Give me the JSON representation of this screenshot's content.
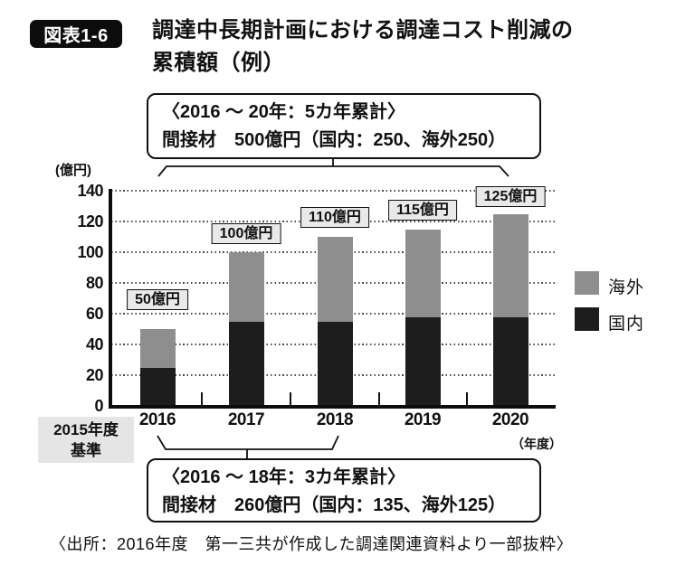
{
  "figure": {
    "badge": "図表1-6",
    "title_line1": "調達中長期計画における調達コスト削減の",
    "title_line2": "累積額（例）"
  },
  "annotations": {
    "top_box_line1": "〈2016 ～ 20年：5カ年累計〉",
    "top_box_line2": "間接材　500億円（国内：250、海外250）",
    "bottom_box_line1": "〈2016 ～ 18年：3カ年累計〉",
    "bottom_box_line2": "間接材　260億円（国内：135、海外125）",
    "baseline_line1": "2015年度",
    "baseline_line2": "基準"
  },
  "source": "〈出所：2016年度　第一三共が作成した調達関連資料より一部抜粋〉",
  "chart_data": {
    "type": "bar",
    "stacked": true,
    "title": "調達中長期計画における調達コスト削減の累積額（例）",
    "unit_label": "(億円)",
    "x_axis_suffix": "（年度）",
    "categories": [
      "2016",
      "2017",
      "2018",
      "2019",
      "2020"
    ],
    "series": [
      {
        "name": "国内",
        "color": "#1d1d1d",
        "values": [
          25,
          55,
          55,
          57.5,
          57.5
        ]
      },
      {
        "name": "海外",
        "color": "#8e8e8e",
        "values": [
          25,
          45,
          55,
          57.5,
          67.5
        ]
      }
    ],
    "totals": [
      50,
      100,
      110,
      115,
      125
    ],
    "bar_labels": [
      "50億円",
      "100億円",
      "110億円",
      "115億円",
      "125億円"
    ],
    "y_ticks": [
      0,
      20,
      40,
      60,
      80,
      100,
      120,
      140
    ],
    "ylim": [
      0,
      140
    ],
    "grid": "dotted-horizontal",
    "legend_position": "right",
    "legend": [
      {
        "label": "海外",
        "color": "#8e8e8e"
      },
      {
        "label": "国内",
        "color": "#1d1d1d"
      }
    ]
  },
  "colors": {
    "domestic": "#1d1d1d",
    "overseas": "#8e8e8e",
    "label_box_bg": "#e9e9e9",
    "baseline_box_bg": "#e5e5e5",
    "badge_bg": "#0d0d0d"
  }
}
